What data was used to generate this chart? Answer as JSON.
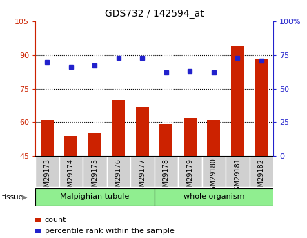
{
  "title": "GDS732 / 142594_at",
  "samples": [
    "GSM29173",
    "GSM29174",
    "GSM29175",
    "GSM29176",
    "GSM29177",
    "GSM29178",
    "GSM29179",
    "GSM29180",
    "GSM29181",
    "GSM29182"
  ],
  "counts": [
    61,
    54,
    55,
    70,
    67,
    59,
    62,
    61,
    94,
    88
  ],
  "percentiles": [
    70,
    66,
    67,
    73,
    73,
    62,
    63,
    62,
    73,
    71
  ],
  "tissue_groups": [
    {
      "label": "Malpighian tubule",
      "start": 0,
      "end": 5
    },
    {
      "label": "whole organism",
      "start": 5,
      "end": 10
    }
  ],
  "ylim_left": [
    45,
    105
  ],
  "ylim_right": [
    0,
    100
  ],
  "yticks_left": [
    45,
    60,
    75,
    90,
    105
  ],
  "yticks_right": [
    0,
    25,
    50,
    75,
    100
  ],
  "ytick_labels_left": [
    "45",
    "60",
    "75",
    "90",
    "105"
  ],
  "ytick_labels_right": [
    "0",
    "25",
    "50",
    "75",
    "100%"
  ],
  "bar_color": "#cc2200",
  "dot_color": "#2222cc",
  "grid_color": "black",
  "tissue_light_green": "#90ee90",
  "tissue_dark_green": "#44cc44",
  "sample_bg_color": "#d0d0d0",
  "tissue_label": "tissue",
  "legend_count": "count",
  "legend_percentile": "percentile rank within the sample",
  "gridlines_at": [
    60,
    75,
    90
  ]
}
